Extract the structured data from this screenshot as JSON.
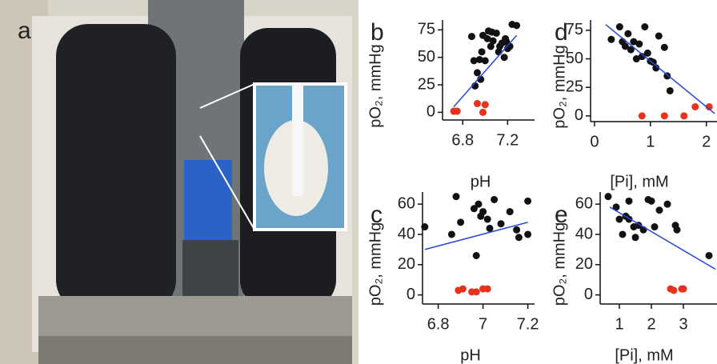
{
  "photo": {
    "label": "a"
  },
  "chart_data": [
    {
      "type": "scatter",
      "label": "b",
      "xlabel": "pH",
      "ylabel": "pO₂, mmHg",
      "xlim": [
        6.62,
        7.44
      ],
      "ylim": [
        -7,
        84
      ],
      "xticks": [
        6.8,
        7.2
      ],
      "yticks": [
        0,
        25,
        50,
        75
      ],
      "series": [
        {
          "color": "#111111",
          "x": [
            6.88,
            6.9,
            6.93,
            6.91,
            6.95,
            6.97,
            6.98,
            7.0,
            7.02,
            7.03,
            7.05,
            7.06,
            7.07,
            7.1,
            7.12,
            7.13,
            7.15,
            7.17,
            7.19,
            7.2,
            7.22,
            7.24,
            7.28,
            6.96,
            7.18
          ],
          "values": [
            69,
            47,
            36,
            24,
            48,
            55,
            70,
            47,
            67,
            74,
            60,
            73,
            65,
            72,
            55,
            60,
            63,
            50,
            64,
            58,
            60,
            80,
            79,
            30,
            67
          ]
        },
        {
          "color": "#e8321e",
          "x": [
            6.72,
            6.75,
            6.93,
            6.98,
            7.0
          ],
          "values": [
            1,
            1,
            8,
            0,
            7
          ]
        },
        {
          "type": "line",
          "color": "#2747d8",
          "x": [
            6.72,
            7.28
          ],
          "values": [
            5,
            70
          ]
        }
      ]
    },
    {
      "type": "scatter",
      "label": "d",
      "xlabel": "[Pi], mM",
      "ylabel": "pO₂, mmHg",
      "xlim": [
        -0.07,
        2.19
      ],
      "ylim": [
        -5,
        84
      ],
      "xticks": [
        0,
        1,
        2
      ],
      "yticks": [
        0,
        25,
        50,
        75
      ],
      "series": [
        {
          "color": "#111111",
          "x": [
            0.3,
            0.45,
            0.5,
            0.55,
            0.6,
            0.65,
            0.7,
            0.75,
            0.8,
            0.9,
            0.95,
            1.0,
            1.05,
            1.1,
            1.15,
            1.3,
            1.35,
            1.25,
            0.85
          ],
          "values": [
            67,
            78,
            65,
            61,
            72,
            58,
            65,
            50,
            63,
            78,
            55,
            48,
            47,
            42,
            70,
            35,
            22,
            60,
            52
          ]
        },
        {
          "color": "#e8321e",
          "x": [
            0.85,
            1.25,
            1.6,
            1.8,
            2.05
          ],
          "values": [
            0,
            0,
            0,
            8,
            8
          ]
        },
        {
          "type": "line",
          "color": "#2747d8",
          "x": [
            0.2,
            2.15
          ],
          "values": [
            80,
            2
          ]
        }
      ]
    },
    {
      "type": "scatter",
      "label": "c",
      "xlabel": "pH",
      "ylabel": "pO₂, mmHg",
      "xlim": [
        6.73,
        7.23
      ],
      "ylim": [
        -6,
        68
      ],
      "xticks": [
        6.8,
        7.0,
        7.2
      ],
      "yticks": [
        0,
        20,
        40,
        60
      ],
      "series": [
        {
          "color": "#111111",
          "x": [
            6.74,
            6.86,
            6.88,
            6.9,
            6.96,
            6.98,
            6.97,
            7.0,
            7.02,
            7.03,
            7.05,
            7.08,
            7.12,
            7.15,
            7.16,
            7.2,
            7.2,
            6.99
          ],
          "values": [
            45,
            40,
            65,
            48,
            57,
            60,
            26,
            55,
            50,
            44,
            63,
            47,
            55,
            43,
            38,
            62,
            40,
            52
          ]
        },
        {
          "color": "#e8321e",
          "x": [
            6.89,
            6.91,
            6.95,
            6.97,
            7.0,
            7.02
          ],
          "values": [
            3,
            4,
            2,
            2,
            4,
            4
          ]
        },
        {
          "type": "line",
          "color": "#2747d8",
          "x": [
            6.74,
            7.2
          ],
          "values": [
            30,
            48
          ]
        }
      ]
    },
    {
      "type": "scatter",
      "label": "e",
      "xlabel": "[Pi], mM",
      "ylabel": "pO₂, mmHg",
      "xlim": [
        0.4,
        4.05
      ],
      "ylim": [
        -6,
        68
      ],
      "xticks": [
        1,
        2,
        3
      ],
      "yticks": [
        0,
        20,
        40,
        60
      ],
      "series": [
        {
          "color": "#111111",
          "x": [
            0.65,
            0.9,
            1.0,
            1.1,
            1.2,
            1.3,
            1.45,
            1.5,
            1.6,
            1.75,
            1.9,
            2.0,
            2.1,
            2.25,
            2.5,
            2.75,
            2.8,
            1.3,
            3.8
          ],
          "values": [
            65,
            58,
            50,
            40,
            52,
            62,
            45,
            38,
            46,
            43,
            63,
            62,
            45,
            56,
            60,
            46,
            43,
            50,
            26
          ]
        },
        {
          "color": "#e8321e",
          "x": [
            2.6,
            2.7,
            2.95,
            3.0
          ],
          "values": [
            4,
            3,
            4,
            4
          ]
        },
        {
          "type": "line",
          "color": "#2747d8",
          "x": [
            0.7,
            4.0
          ],
          "values": [
            58,
            17
          ]
        }
      ]
    }
  ]
}
